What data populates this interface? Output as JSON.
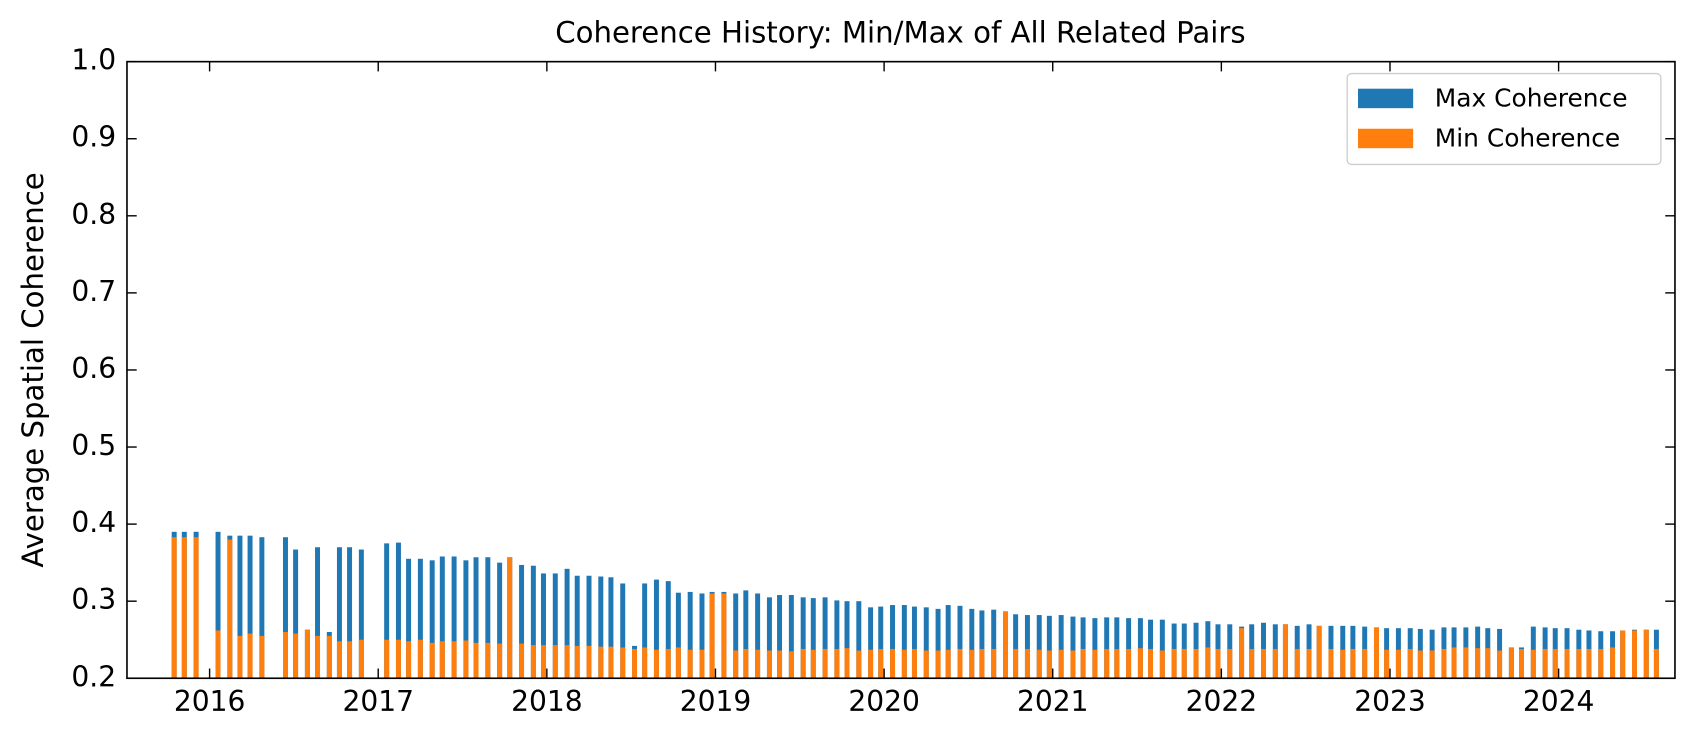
{
  "chart_data": {
    "type": "bar",
    "title": "Coherence History: Min/Max of All Related Pairs",
    "ylabel": "Average Spatial Coherence",
    "x": [
      2015.79,
      2015.85,
      2015.92,
      2016.05,
      2016.12,
      2016.18,
      2016.24,
      2016.31,
      2016.45,
      2016.51,
      2016.58,
      2016.64,
      2016.71,
      2016.77,
      2016.83,
      2016.9,
      2017.05,
      2017.12,
      2017.18,
      2017.25,
      2017.32,
      2017.38,
      2017.45,
      2017.52,
      2017.58,
      2017.65,
      2017.72,
      2017.78,
      2017.85,
      2017.92,
      2017.98,
      2018.05,
      2018.12,
      2018.18,
      2018.25,
      2018.32,
      2018.38,
      2018.45,
      2018.52,
      2018.58,
      2018.65,
      2018.72,
      2018.78,
      2018.85,
      2018.92,
      2018.98,
      2019.05,
      2019.12,
      2019.18,
      2019.25,
      2019.32,
      2019.38,
      2019.45,
      2019.52,
      2019.58,
      2019.65,
      2019.72,
      2019.78,
      2019.85,
      2019.92,
      2019.98,
      2020.05,
      2020.12,
      2020.18,
      2020.25,
      2020.32,
      2020.38,
      2020.45,
      2020.52,
      2020.58,
      2020.65,
      2020.72,
      2020.78,
      2020.85,
      2020.92,
      2020.98,
      2021.05,
      2021.12,
      2021.18,
      2021.25,
      2021.32,
      2021.38,
      2021.45,
      2021.52,
      2021.58,
      2021.65,
      2021.72,
      2021.78,
      2021.85,
      2021.92,
      2021.98,
      2022.05,
      2022.12,
      2022.18,
      2022.25,
      2022.32,
      2022.38,
      2022.45,
      2022.52,
      2022.58,
      2022.65,
      2022.72,
      2022.78,
      2022.85,
      2022.92,
      2022.98,
      2023.05,
      2023.12,
      2023.18,
      2023.25,
      2023.32,
      2023.38,
      2023.45,
      2023.52,
      2023.58,
      2023.65,
      2023.72,
      2023.78,
      2023.85,
      2023.92,
      2023.98,
      2024.05,
      2024.12,
      2024.18,
      2024.25,
      2024.32,
      2024.38,
      2024.45,
      2024.52,
      2024.58
    ],
    "series": [
      {
        "name": "Max Coherence",
        "color": "#1f77b4",
        "values": [
          0.39,
          0.39,
          0.39,
          0.39,
          0.385,
          0.385,
          0.385,
          0.383,
          0.383,
          0.367,
          0.263,
          0.37,
          0.26,
          0.37,
          0.37,
          0.367,
          0.375,
          0.376,
          0.355,
          0.355,
          0.353,
          0.358,
          0.358,
          0.353,
          0.357,
          0.357,
          0.35,
          0.357,
          0.347,
          0.346,
          0.336,
          0.336,
          0.342,
          0.333,
          0.333,
          0.332,
          0.331,
          0.323,
          0.242,
          0.323,
          0.328,
          0.326,
          0.311,
          0.312,
          0.31,
          0.312,
          0.312,
          0.31,
          0.314,
          0.31,
          0.305,
          0.308,
          0.308,
          0.305,
          0.304,
          0.305,
          0.301,
          0.3,
          0.3,
          0.292,
          0.293,
          0.295,
          0.295,
          0.293,
          0.292,
          0.29,
          0.295,
          0.294,
          0.29,
          0.288,
          0.289,
          0.285,
          0.283,
          0.282,
          0.282,
          0.281,
          0.282,
          0.28,
          0.279,
          0.278,
          0.279,
          0.279,
          0.278,
          0.278,
          0.276,
          0.276,
          0.271,
          0.271,
          0.272,
          0.274,
          0.27,
          0.27,
          0.267,
          0.27,
          0.272,
          0.27,
          0.27,
          0.268,
          0.27,
          0.268,
          0.268,
          0.268,
          0.268,
          0.267,
          0.266,
          0.265,
          0.265,
          0.265,
          0.264,
          0.263,
          0.266,
          0.266,
          0.266,
          0.267,
          0.265,
          0.264,
          0.24,
          0.24,
          0.267,
          0.266,
          0.265,
          0.265,
          0.263,
          0.262,
          0.261,
          0.261,
          0.262,
          0.263,
          0.263,
          0.263
        ]
      },
      {
        "name": "Min Coherence",
        "color": "#ff7f0e",
        "values": [
          0.383,
          0.383,
          0.383,
          0.262,
          0.38,
          0.255,
          0.258,
          0.255,
          0.26,
          0.258,
          0.263,
          0.255,
          0.255,
          0.248,
          0.248,
          0.25,
          0.25,
          0.25,
          0.248,
          0.25,
          0.246,
          0.248,
          0.248,
          0.249,
          0.246,
          0.246,
          0.245,
          0.357,
          0.245,
          0.243,
          0.243,
          0.243,
          0.243,
          0.242,
          0.242,
          0.241,
          0.241,
          0.24,
          0.238,
          0.24,
          0.237,
          0.238,
          0.24,
          0.237,
          0.237,
          0.31,
          0.31,
          0.236,
          0.238,
          0.237,
          0.236,
          0.236,
          0.235,
          0.238,
          0.237,
          0.238,
          0.238,
          0.239,
          0.236,
          0.237,
          0.238,
          0.238,
          0.237,
          0.238,
          0.236,
          0.236,
          0.237,
          0.238,
          0.237,
          0.238,
          0.238,
          0.287,
          0.238,
          0.238,
          0.237,
          0.236,
          0.237,
          0.236,
          0.238,
          0.237,
          0.238,
          0.238,
          0.238,
          0.239,
          0.238,
          0.236,
          0.238,
          0.238,
          0.238,
          0.24,
          0.238,
          0.238,
          0.265,
          0.238,
          0.238,
          0.238,
          0.27,
          0.238,
          0.238,
          0.268,
          0.238,
          0.237,
          0.238,
          0.238,
          0.266,
          0.237,
          0.237,
          0.238,
          0.236,
          0.236,
          0.238,
          0.24,
          0.24,
          0.239,
          0.239,
          0.236,
          0.24,
          0.238,
          0.237,
          0.238,
          0.238,
          0.238,
          0.238,
          0.238,
          0.238,
          0.24,
          0.262,
          0.262,
          0.263,
          0.238
        ]
      }
    ],
    "xlim": [
      2015.51,
      2024.69
    ],
    "xticks": [
      2016,
      2017,
      2018,
      2019,
      2020,
      2021,
      2022,
      2023,
      2024
    ],
    "ylim": [
      0.2,
      1.0
    ],
    "yticks": [
      0.2,
      0.3,
      0.4,
      0.5,
      0.6,
      0.7,
      0.8,
      0.9,
      {
        "value": 1.0,
        "label": "1.0"
      }
    ],
    "legend": "upper right"
  }
}
